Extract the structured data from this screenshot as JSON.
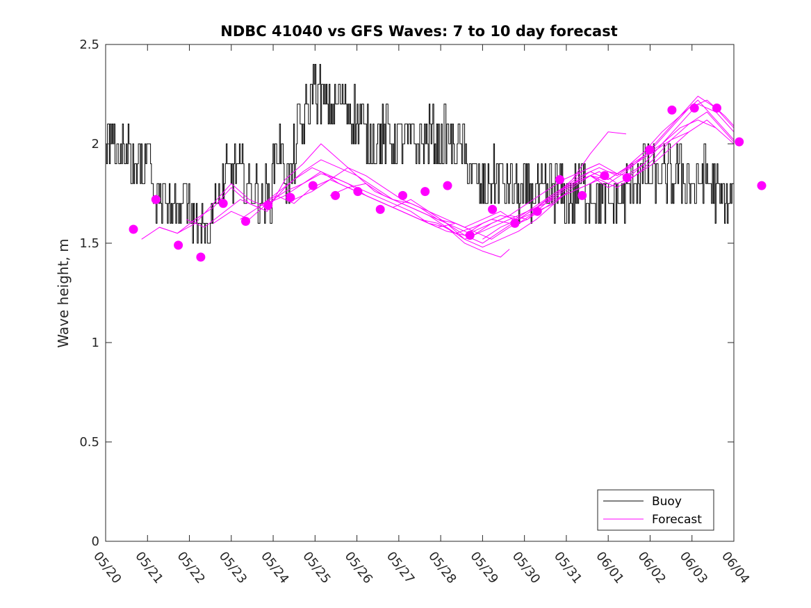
{
  "chart_data": {
    "type": "line",
    "title": "NDBC 41040 vs GFS Waves: 7 to 10 day forecast",
    "xlabel": "",
    "ylabel": "Wave height, m",
    "ylim": [
      0,
      2.5
    ],
    "xlim": [
      0,
      14
    ],
    "yticks": [
      0,
      0.5,
      1,
      1.5,
      2,
      2.5
    ],
    "ytick_labels": [
      "0",
      "0.5",
      "1",
      "1.5",
      "2",
      "2.5"
    ],
    "xtick_labels": [
      "05/20",
      "05/21",
      "05/22",
      "05/23",
      "05/24",
      "05/25",
      "05/26",
      "05/27",
      "05/28",
      "05/29",
      "05/30",
      "05/31",
      "06/01",
      "06/02",
      "06/03",
      "06/04"
    ],
    "legend": {
      "position": "bottom-right",
      "entries": [
        "Buoy",
        "Forecast"
      ]
    },
    "colors": {
      "buoy": "#000000",
      "forecast": "#ff00ff"
    },
    "buoy": {
      "name": "Buoy",
      "keypoints": [
        [
          0.0,
          1.95
        ],
        [
          0.15,
          2.05
        ],
        [
          0.3,
          1.95
        ],
        [
          0.45,
          2.0
        ],
        [
          0.6,
          1.85
        ],
        [
          0.8,
          1.9
        ],
        [
          1.0,
          1.95
        ],
        [
          1.1,
          1.75
        ],
        [
          1.3,
          1.72
        ],
        [
          1.5,
          1.68
        ],
        [
          1.7,
          1.72
        ],
        [
          1.9,
          1.65
        ],
        [
          2.1,
          1.62
        ],
        [
          2.3,
          1.6
        ],
        [
          2.5,
          1.7
        ],
        [
          2.7,
          1.82
        ],
        [
          2.9,
          1.88
        ],
        [
          3.1,
          1.8
        ],
        [
          3.3,
          1.75
        ],
        [
          3.5,
          1.72
        ],
        [
          3.7,
          1.75
        ],
        [
          3.85,
          2.0
        ],
        [
          4.0,
          1.9
        ],
        [
          4.1,
          1.8
        ],
        [
          4.2,
          1.9
        ],
        [
          4.3,
          2.05
        ],
        [
          4.5,
          2.15
        ],
        [
          4.65,
          2.3
        ],
        [
          4.8,
          2.25
        ],
        [
          5.0,
          2.2
        ],
        [
          5.2,
          2.22
        ],
        [
          5.4,
          2.2
        ],
        [
          5.6,
          2.15
        ],
        [
          5.8,
          2.05
        ],
        [
          6.0,
          2.0
        ],
        [
          6.2,
          2.05
        ],
        [
          6.4,
          2.0
        ],
        [
          6.6,
          2.05
        ],
        [
          6.8,
          2.0
        ],
        [
          7.0,
          2.02
        ],
        [
          7.2,
          2.05
        ],
        [
          7.4,
          2.0
        ],
        [
          7.6,
          2.05
        ],
        [
          7.8,
          1.98
        ],
        [
          8.0,
          1.95
        ],
        [
          8.2,
          1.85
        ],
        [
          8.4,
          1.75
        ],
        [
          8.6,
          1.8
        ],
        [
          8.8,
          1.85
        ],
        [
          9.0,
          1.78
        ],
        [
          9.2,
          1.75
        ],
        [
          9.4,
          1.72
        ],
        [
          9.6,
          1.75
        ],
        [
          9.8,
          1.72
        ],
        [
          10.0,
          1.78
        ],
        [
          10.2,
          1.75
        ],
        [
          10.4,
          1.72
        ],
        [
          10.6,
          1.8
        ],
        [
          10.8,
          1.75
        ],
        [
          11.0,
          1.72
        ],
        [
          11.2,
          1.7
        ],
        [
          11.4,
          1.72
        ],
        [
          11.6,
          1.75
        ],
        [
          11.8,
          1.8
        ],
        [
          12.0,
          1.85
        ],
        [
          12.2,
          1.82
        ],
        [
          12.4,
          1.85
        ],
        [
          12.6,
          1.82
        ],
        [
          12.8,
          1.85
        ],
        [
          13.0,
          1.8
        ],
        [
          13.2,
          1.78
        ],
        [
          13.4,
          1.85
        ],
        [
          13.6,
          1.75
        ],
        [
          13.8,
          1.7
        ],
        [
          14.0,
          1.75
        ],
        [
          14.2,
          1.68
        ],
        [
          14.4,
          1.72
        ]
      ],
      "end": 14.45
    },
    "forecast_points": {
      "name": "Forecast",
      "x": [
        0.62,
        1.12,
        1.62,
        2.12,
        2.62,
        3.12,
        3.62,
        4.12,
        4.62,
        5.12,
        5.62,
        6.12,
        6.62,
        7.12,
        7.62,
        8.12,
        8.62,
        9.12,
        9.62,
        10.12,
        10.62,
        11.12,
        11.62,
        12.12,
        12.62,
        13.12,
        13.62,
        14.12,
        14.62
      ],
      "y": [
        1.57,
        1.72,
        1.49,
        1.43,
        1.7,
        1.61,
        1.69,
        1.73,
        1.79,
        1.74,
        1.76,
        1.67,
        1.74,
        1.76,
        1.79,
        1.54,
        1.67,
        1.6,
        1.66,
        1.82,
        1.74,
        1.84,
        1.83,
        1.97,
        2.17,
        2.18,
        2.18,
        2.01,
        1.79
      ]
    },
    "forecast_series": [
      {
        "x": [
          0.8,
          1.2,
          1.6,
          2.0,
          2.4,
          2.8,
          3.2,
          3.6,
          4.0,
          4.4,
          4.8,
          5.2,
          5.6,
          6.0,
          6.4,
          6.8,
          7.2,
          7.6,
          8.0,
          8.4,
          8.8,
          9.0
        ],
        "y": [
          1.52,
          1.58,
          1.55,
          1.62,
          1.68,
          1.78,
          1.7,
          1.66,
          1.82,
          1.9,
          2.0,
          1.92,
          1.84,
          1.78,
          1.72,
          1.68,
          1.64,
          1.58,
          1.5,
          1.46,
          1.43,
          1.47
        ]
      },
      {
        "x": [
          1.2,
          1.6,
          2.0,
          2.4,
          2.8,
          3.2,
          3.6,
          4.0,
          4.4,
          4.8,
          5.2,
          5.6,
          6.0,
          6.4,
          6.8,
          7.2,
          7.6,
          8.0,
          8.4,
          8.8,
          9.2,
          9.6,
          10.0
        ],
        "y": [
          1.58,
          1.55,
          1.6,
          1.7,
          1.8,
          1.72,
          1.68,
          1.78,
          1.86,
          1.92,
          1.88,
          1.84,
          1.76,
          1.72,
          1.7,
          1.66,
          1.6,
          1.52,
          1.48,
          1.52,
          1.56,
          1.62,
          1.7
        ]
      },
      {
        "x": [
          1.8,
          2.2,
          2.6,
          3.0,
          3.4,
          3.8,
          4.2,
          4.6,
          5.0,
          5.4,
          5.8,
          6.2,
          6.6,
          7.0,
          7.4,
          7.8,
          8.2,
          8.6,
          9.0,
          9.4,
          9.8,
          10.2,
          10.6,
          11.0
        ],
        "y": [
          1.62,
          1.58,
          1.65,
          1.72,
          1.68,
          1.75,
          1.82,
          1.88,
          1.84,
          1.8,
          1.74,
          1.7,
          1.66,
          1.62,
          1.6,
          1.55,
          1.58,
          1.62,
          1.6,
          1.66,
          1.72,
          1.78,
          1.86,
          1.9
        ]
      },
      {
        "x": [
          2.4,
          2.8,
          3.2,
          3.6,
          4.0,
          4.4,
          4.8,
          5.2,
          5.6,
          6.0,
          6.4,
          6.8,
          7.2,
          7.6,
          8.0,
          8.4,
          8.8,
          9.2,
          9.6,
          10.0,
          10.4,
          10.8,
          11.2,
          11.6,
          12.0
        ],
        "y": [
          1.6,
          1.66,
          1.62,
          1.7,
          1.76,
          1.8,
          1.85,
          1.82,
          1.78,
          1.74,
          1.7,
          1.66,
          1.6,
          1.56,
          1.54,
          1.6,
          1.64,
          1.62,
          1.68,
          1.75,
          1.8,
          1.84,
          1.78,
          1.82,
          1.9
        ]
      },
      {
        "x": [
          3.0,
          3.4,
          3.8,
          4.2,
          4.6,
          5.0,
          5.4,
          5.8,
          6.2,
          6.6,
          7.0,
          7.4,
          7.8,
          8.2,
          8.6,
          9.0,
          9.4,
          9.8,
          10.2,
          10.6,
          11.0,
          11.4,
          11.8,
          12.2,
          12.6,
          13.0
        ],
        "y": [
          1.62,
          1.68,
          1.74,
          1.7,
          1.78,
          1.82,
          1.88,
          1.84,
          1.78,
          1.72,
          1.68,
          1.62,
          1.58,
          1.54,
          1.6,
          1.64,
          1.7,
          1.76,
          1.82,
          1.86,
          1.9,
          1.85,
          1.9,
          1.96,
          2.02,
          2.06
        ]
      },
      {
        "x": [
          3.6,
          4.0,
          4.4,
          4.8,
          5.2,
          5.6,
          6.0,
          6.4,
          6.8,
          7.2,
          7.6,
          8.0,
          8.4,
          8.8,
          9.2,
          9.6,
          10.0,
          10.4,
          10.8,
          11.2,
          11.6,
          12.0,
          12.4,
          12.8,
          13.2,
          13.6
        ],
        "y": [
          1.7,
          1.74,
          1.8,
          1.86,
          1.8,
          1.76,
          1.72,
          1.68,
          1.72,
          1.66,
          1.62,
          1.58,
          1.62,
          1.66,
          1.6,
          1.66,
          1.74,
          1.8,
          1.86,
          1.82,
          1.88,
          1.94,
          2.0,
          2.08,
          2.12,
          2.08
        ]
      },
      {
        "x": [
          4.2,
          4.6,
          5.0,
          5.4,
          5.8,
          6.2,
          6.6,
          7.0,
          7.4,
          7.8,
          8.2,
          8.6,
          9.0,
          9.4,
          9.8,
          10.2,
          10.6,
          11.0,
          11.4,
          11.8,
          12.2,
          12.6,
          13.0,
          13.4,
          13.8,
          14.2
        ],
        "y": [
          1.72,
          1.76,
          1.82,
          1.78,
          1.74,
          1.7,
          1.66,
          1.62,
          1.58,
          1.6,
          1.56,
          1.52,
          1.58,
          1.62,
          1.68,
          1.74,
          1.78,
          1.82,
          1.78,
          1.84,
          1.9,
          1.98,
          2.06,
          2.12,
          2.04,
          1.96
        ]
      },
      {
        "x": [
          5.0,
          5.4,
          5.8,
          6.2,
          6.6,
          7.0,
          7.4,
          7.8,
          8.2,
          8.6,
          9.0,
          9.4,
          9.8,
          10.2,
          10.6,
          11.0,
          11.4,
          11.8,
          12.2,
          12.6,
          13.0,
          13.4,
          13.8,
          14.2,
          14.6,
          15.0
        ],
        "y": [
          1.74,
          1.78,
          1.8,
          1.74,
          1.7,
          1.66,
          1.62,
          1.6,
          1.56,
          1.6,
          1.64,
          1.62,
          1.7,
          1.76,
          1.82,
          1.86,
          1.8,
          1.84,
          1.92,
          2.02,
          2.1,
          2.16,
          2.06,
          1.96,
          1.86,
          1.8
        ]
      },
      {
        "x": [
          6.0,
          6.4,
          6.8,
          7.2,
          7.6,
          8.0,
          8.4,
          8.8,
          9.2,
          9.6,
          10.0,
          10.4,
          10.8,
          11.2,
          11.6,
          12.0,
          12.4,
          12.8,
          13.2,
          13.6,
          14.0,
          14.4,
          14.8,
          15.0
        ],
        "y": [
          1.72,
          1.68,
          1.64,
          1.6,
          1.58,
          1.52,
          1.56,
          1.6,
          1.64,
          1.68,
          1.72,
          1.76,
          1.8,
          1.86,
          1.84,
          1.9,
          2.0,
          2.1,
          2.2,
          2.16,
          2.06,
          1.94,
          1.82,
          1.76
        ]
      },
      {
        "x": [
          7.2,
          7.6,
          8.0,
          8.4,
          8.8,
          9.2,
          9.6,
          10.0,
          10.4,
          10.8,
          11.2,
          11.6,
          12.0,
          12.4,
          12.8,
          13.2,
          13.6,
          14.0,
          14.4,
          14.8,
          15.0
        ],
        "y": [
          1.66,
          1.6,
          1.54,
          1.5,
          1.56,
          1.62,
          1.66,
          1.7,
          1.78,
          1.84,
          1.8,
          1.86,
          1.94,
          2.04,
          2.14,
          2.22,
          2.12,
          2.02,
          1.9,
          1.78,
          1.72
        ]
      },
      {
        "x": [
          8.4,
          8.8,
          9.2,
          9.6,
          10.0,
          10.4,
          10.8,
          11.2,
          11.6,
          12.0,
          12.4,
          12.8,
          13.2,
          13.6,
          14.0,
          14.4,
          14.8,
          15.0
        ],
        "y": [
          1.52,
          1.58,
          1.62,
          1.68,
          1.74,
          1.8,
          1.84,
          1.82,
          1.88,
          1.96,
          2.06,
          2.14,
          2.24,
          2.18,
          2.08,
          1.96,
          1.88,
          1.84
        ]
      },
      {
        "x": [
          10.2,
          10.6,
          11.0,
          11.4,
          11.8,
          12.2,
          12.6,
          13.0,
          13.4,
          13.8,
          14.2,
          14.6,
          15.0
        ],
        "y": [
          1.78,
          1.84,
          1.88,
          1.84,
          1.9,
          1.98,
          2.08,
          2.18,
          2.22,
          2.14,
          2.04,
          1.94,
          1.86
        ]
      },
      {
        "x": [
          10.4,
          10.8,
          11.2,
          11.6
        ],
        "y": [
          1.82,
          1.95,
          2.06,
          2.05
        ]
      }
    ]
  }
}
